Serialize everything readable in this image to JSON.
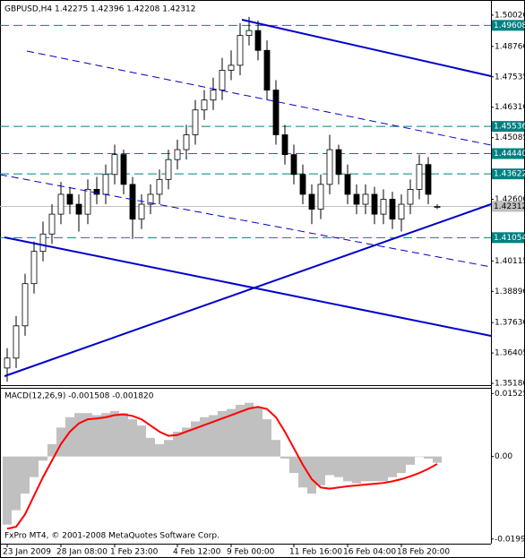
{
  "chart_data": [
    {
      "type": "candlestick",
      "title": "GBPUSD,H4 1.42275 1.42396 1.42208 1.42312",
      "categories": [
        "23 Jan 2009",
        null,
        null,
        null,
        null,
        null,
        "28 Jan 08:00",
        null,
        null,
        null,
        null,
        null,
        "1 Feb 23:00",
        null,
        null,
        null,
        null,
        null,
        null,
        "4 Feb 12:00",
        null,
        null,
        null,
        null,
        null,
        "9 Feb 00:00",
        null,
        null,
        null,
        null,
        null,
        null,
        "11 Feb 16:00",
        null,
        null,
        null,
        null,
        null,
        "16 Feb 04:00",
        null,
        null,
        null,
        null,
        null,
        "18 Feb 20:00",
        null,
        null,
        null,
        null
      ],
      "open": [
        1.358,
        1.362,
        1.375,
        1.392,
        1.405,
        1.412,
        1.42,
        1.428,
        1.424,
        1.42,
        1.43,
        1.428,
        1.436,
        1.444,
        1.432,
        1.418,
        1.424,
        1.428,
        1.434,
        1.442,
        1.446,
        1.452,
        1.462,
        1.466,
        1.47,
        1.478,
        1.48,
        1.492,
        1.494,
        1.486,
        1.47,
        1.452,
        1.444,
        1.436,
        1.428,
        1.422,
        1.432,
        1.446,
        1.436,
        1.428,
        1.424,
        1.428,
        1.42,
        1.426,
        1.418,
        1.424,
        1.43,
        1.44,
        1.42275
      ],
      "high": [
        1.366,
        1.379,
        1.396,
        1.409,
        1.417,
        1.424,
        1.433,
        1.431,
        1.428,
        1.434,
        1.435,
        1.44,
        1.448,
        1.446,
        1.435,
        1.428,
        1.432,
        1.438,
        1.446,
        1.45,
        1.456,
        1.466,
        1.47,
        1.475,
        1.483,
        1.486,
        1.497,
        1.4995,
        1.498,
        1.49,
        1.474,
        1.456,
        1.448,
        1.44,
        1.432,
        1.436,
        1.452,
        1.448,
        1.44,
        1.432,
        1.432,
        1.431,
        1.43,
        1.429,
        1.428,
        1.434,
        1.444,
        1.443,
        1.42396
      ],
      "low": [
        1.3525,
        1.358,
        1.371,
        1.388,
        1.401,
        1.408,
        1.416,
        1.42,
        1.413,
        1.416,
        1.424,
        1.424,
        1.432,
        1.428,
        1.41,
        1.414,
        1.42,
        1.424,
        1.43,
        1.438,
        1.442,
        1.448,
        1.458,
        1.462,
        1.466,
        1.474,
        1.476,
        1.488,
        1.482,
        1.466,
        1.448,
        1.44,
        1.432,
        1.424,
        1.416,
        1.418,
        1.428,
        1.432,
        1.424,
        1.42,
        1.42,
        1.416,
        1.416,
        1.414,
        1.413,
        1.42,
        1.426,
        1.424,
        1.42208
      ],
      "close": [
        1.362,
        1.375,
        1.392,
        1.405,
        1.412,
        1.42,
        1.428,
        1.424,
        1.42,
        1.43,
        1.428,
        1.436,
        1.444,
        1.432,
        1.418,
        1.424,
        1.428,
        1.434,
        1.442,
        1.446,
        1.452,
        1.462,
        1.466,
        1.47,
        1.478,
        1.48,
        1.492,
        1.494,
        1.486,
        1.47,
        1.452,
        1.444,
        1.436,
        1.428,
        1.422,
        1.432,
        1.446,
        1.436,
        1.428,
        1.424,
        1.428,
        1.42,
        1.426,
        1.418,
        1.424,
        1.43,
        1.44,
        1.428,
        1.42312
      ],
      "up_color": "#ffffff",
      "down_color": "#000000",
      "ylim": [
        1.3511,
        1.5045
      ],
      "yticks": [
        {
          "value": 1.5002,
          "label": "1.50020"
        },
        {
          "value": 1.4876,
          "label": "1.48760"
        },
        {
          "value": 1.47535,
          "label": "1.47535"
        },
        {
          "value": 1.4631,
          "label": "1.46310"
        },
        {
          "value": 1.45085,
          "label": "1.45085"
        },
        {
          "value": 1.426,
          "label": "1.42600"
        },
        {
          "value": 1.40115,
          "label": "1.40115"
        },
        {
          "value": 1.3889,
          "label": "1.38890"
        },
        {
          "value": 1.3763,
          "label": "1.37630"
        },
        {
          "value": 1.36405,
          "label": "1.36405"
        },
        {
          "value": 1.3518,
          "label": "1.35180"
        }
      ],
      "levels": [
        {
          "value": 1.49608,
          "label": "1.49608"
        },
        {
          "value": 1.45536,
          "label": "1.45536"
        },
        {
          "value": 1.4444,
          "label": "1.44440"
        },
        {
          "value": 1.43622,
          "label": "1.43622"
        },
        {
          "value": 1.41054,
          "label": "1.41054"
        }
      ],
      "level_color": "#008080",
      "current": {
        "value": 1.42312,
        "label": "1.42312"
      }
    },
    {
      "type": "macd",
      "title": "MACD(12,26,9) -0.001508 -0.001820",
      "histogram": {
        "color": "#c0c0c0",
        "values": [
          -0.0165,
          -0.013,
          -0.009,
          -0.005,
          -0.001,
          0.003,
          0.007,
          0.0095,
          0.0105,
          0.0105,
          0.01,
          0.0105,
          0.011,
          0.0105,
          0.009,
          0.0075,
          0.0045,
          0.003,
          0.004,
          0.006,
          0.007,
          0.0085,
          0.0095,
          0.01,
          0.011,
          0.0115,
          0.0125,
          0.013,
          0.012,
          0.009,
          0.004,
          -0.0005,
          -0.004,
          -0.0075,
          -0.009,
          -0.007,
          -0.0045,
          -0.005,
          -0.006,
          -0.0065,
          -0.006,
          -0.006,
          -0.006,
          -0.005,
          -0.004,
          -0.002,
          0.0,
          -0.0005,
          -0.001508
        ]
      },
      "signal": {
        "color": "#ff0000",
        "values": [
          -0.0175,
          -0.017,
          -0.014,
          -0.0095,
          -0.005,
          -0.001,
          0.003,
          0.006,
          0.008,
          0.009,
          0.0092,
          0.0095,
          0.01,
          0.0102,
          0.0098,
          0.009,
          0.0075,
          0.006,
          0.005,
          0.0052,
          0.006,
          0.0068,
          0.0076,
          0.0084,
          0.0092,
          0.01,
          0.0108,
          0.0116,
          0.012,
          0.0115,
          0.0095,
          0.006,
          0.002,
          -0.002,
          -0.0055,
          -0.0075,
          -0.0078,
          -0.0075,
          -0.0072,
          -0.007,
          -0.0068,
          -0.0066,
          -0.0064,
          -0.006,
          -0.0055,
          -0.0048,
          -0.004,
          -0.003,
          -0.00182
        ]
      },
      "ylim": [
        -0.0211,
        0.0164
      ],
      "yticks": [
        {
          "value": 0.01525,
          "label": "0.01525"
        },
        {
          "value": 0,
          "label": "0.00"
        },
        {
          "value": -0.01997,
          "label": "-0.01997"
        }
      ]
    }
  ],
  "footer": "FxPro MT4, © 2001-2008 MetaQuotes Software Corp."
}
